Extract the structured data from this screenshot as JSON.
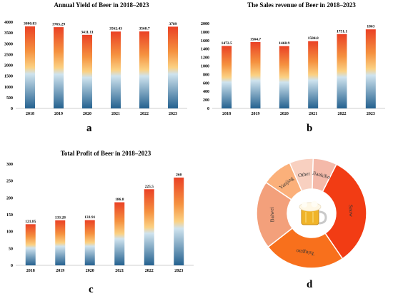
{
  "panel_labels": {
    "a": "a",
    "b": "b",
    "c": "c",
    "d": "d"
  },
  "colors": {
    "bar_top": "#ea4125",
    "bar_upper": "#f5913f",
    "bar_mid": "#fbd183",
    "bar_light": "#cfe3ee",
    "bar_bottom": "#24618f",
    "pie": [
      "#f23c14",
      "#f8701c",
      "#f3a07b",
      "#fbb07a",
      "#f8d0c0",
      "#f4b9a9"
    ]
  },
  "chart_data": [
    {
      "id": "a",
      "type": "bar",
      "title": "Annual Yield of Beer in 2018–2023",
      "categories": [
        "2018",
        "2019",
        "2020",
        "2021",
        "2022",
        "2023"
      ],
      "values": [
        3800.83,
        3765.29,
        3411.11,
        3562.43,
        3568.7,
        3789
      ],
      "value_labels": [
        "3800.83",
        "3765.29",
        "3411.11",
        "3562.43",
        "3568.7",
        "3789"
      ],
      "ylim": [
        0,
        4000
      ],
      "yticks": [
        "0",
        "500",
        "1000",
        "1500",
        "2000",
        "2500",
        "3000",
        "3500",
        "4000"
      ],
      "xlabel": "",
      "ylabel": "",
      "grid": false
    },
    {
      "id": "b",
      "type": "bar",
      "title": "The Sales revenue of Beer in 2018–2023",
      "categories": [
        "2018",
        "2019",
        "2020",
        "2021",
        "2022",
        "2023"
      ],
      "values": [
        1472.5,
        1564.7,
        1468.9,
        1584.8,
        1751.1,
        1863
      ],
      "value_labels": [
        "1472.5",
        "1564.7",
        "1468.9",
        "1584.8",
        "1751.1",
        "1863"
      ],
      "ylim": [
        0,
        2000
      ],
      "yticks": [
        "0",
        "200",
        "400",
        "600",
        "800",
        "1000",
        "1200",
        "1400",
        "1600",
        "1800",
        "2000"
      ],
      "xlabel": "",
      "ylabel": "",
      "grid": false
    },
    {
      "id": "c",
      "type": "bar",
      "title": "Total Profit of Beer in 2018–2023",
      "categories": [
        "2018",
        "2019",
        "2020",
        "2021",
        "2022",
        "2023"
      ],
      "values": [
        121.85,
        133.28,
        133.91,
        186.8,
        225.5,
        260
      ],
      "value_labels": [
        "121.85",
        "133.28",
        "133.91",
        "186.8",
        "225.5",
        "260"
      ],
      "ylim": [
        0,
        300
      ],
      "yticks": [
        "0",
        "50",
        "100",
        "150",
        "200",
        "250",
        "300"
      ],
      "xlabel": "",
      "ylabel": "",
      "grid": false
    },
    {
      "id": "d",
      "type": "pie",
      "donut": true,
      "center_icon": "beer-mug-icon",
      "slices": [
        {
          "label": "Snow",
          "value": 33
        },
        {
          "label": "Tsingtao",
          "value": 24
        },
        {
          "label": "Baiwei",
          "value": 20
        },
        {
          "label": "Yanjing",
          "value": 9
        },
        {
          "label": "Other",
          "value": 7
        },
        {
          "label": "Jiankibo",
          "value": 7
        }
      ]
    }
  ]
}
